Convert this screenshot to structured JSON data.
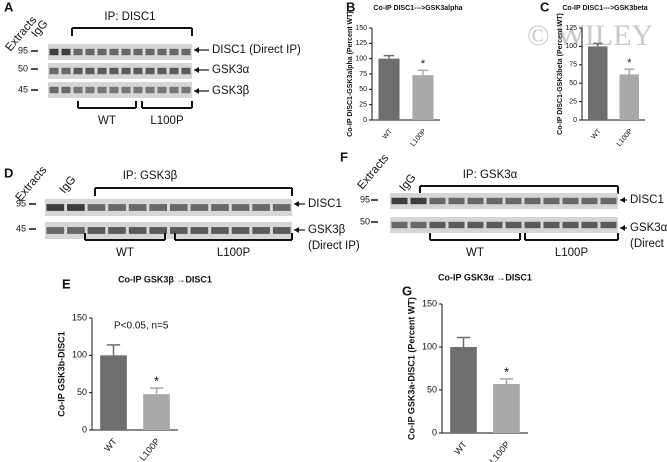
{
  "watermark": "© WILEY",
  "blots": [
    {
      "panel": "A",
      "lanes": [
        "Extracts",
        "IgG"
      ],
      "title": "IP: DISC1",
      "markers": [
        95,
        50,
        45
      ],
      "bands": [
        "DISC1 (Direct IP)",
        "GSK3α",
        "GSK3β"
      ],
      "groups": [
        "WT",
        "L100P"
      ]
    },
    {
      "panel": "D",
      "lanes": [
        "Extracts",
        "IgG"
      ],
      "title": "IP: GSK3β",
      "markers": [
        95,
        45
      ],
      "bands": [
        "DISC1",
        "GSK3β",
        "(Direct IP)"
      ],
      "groups": [
        "WT",
        "L100P"
      ]
    },
    {
      "panel": "F",
      "lanes": [
        "Extracts",
        "IgG"
      ],
      "title": "IP: GSK3α",
      "markers": [
        95,
        50
      ],
      "bands": [
        "DISC1",
        "GSK3α",
        "(Direct IP)"
      ],
      "groups": [
        "WT",
        "L100P"
      ]
    }
  ],
  "chart_data": [
    {
      "type": "bar",
      "panel": "B",
      "title": "Co-IP DISC1--->GSK3alpha",
      "y_label": "Co-IP DISC1-GSK3alpha (Percent WT)",
      "categories": [
        "WT",
        "L100P"
      ],
      "values": [
        100,
        73
      ],
      "errors": [
        5,
        8
      ],
      "colors": [
        "#6e6e6e",
        "#a9a9a9"
      ],
      "annotations": [
        "*"
      ],
      "ylim": [
        0,
        150
      ],
      "yticks": [
        0,
        25,
        50,
        75,
        100,
        125,
        150
      ]
    },
    {
      "type": "bar",
      "panel": "C",
      "title": "Co-IP DISC1--->GSK3beta",
      "y_label": "Co-IP DISC1-GSK3beta (Percent WT)",
      "categories": [
        "WT",
        "L100P"
      ],
      "values": [
        100,
        62
      ],
      "errors": [
        4,
        7
      ],
      "colors": [
        "#6e6e6e",
        "#a9a9a9"
      ],
      "annotations": [
        "*"
      ],
      "ylim": [
        0,
        125
      ],
      "yticks": [
        0,
        25,
        50,
        75,
        100,
        125
      ]
    },
    {
      "type": "bar",
      "panel": "E",
      "title": "Co-IP GSK3β →DISC1",
      "y_label": "Co-IP GSK3b-DISC1",
      "categories": [
        "WT",
        "L100P"
      ],
      "values": [
        100,
        48
      ],
      "errors": [
        14,
        8
      ],
      "colors": [
        "#6e6e6e",
        "#a9a9a9"
      ],
      "annotations": [
        "P<0.05, n=5",
        "*"
      ],
      "ylim": [
        0,
        150
      ],
      "yticks": [
        0,
        50,
        100,
        150
      ]
    },
    {
      "type": "bar",
      "panel": "G",
      "title": "Co-IP GSK3α →DISC1",
      "y_label": "Co-IP GSK3a-DISC1 (Percent WT)",
      "categories": [
        "WT",
        "L100P"
      ],
      "values": [
        100,
        57
      ],
      "errors": [
        11,
        6
      ],
      "colors": [
        "#6e6e6e",
        "#a9a9a9"
      ],
      "annotations": [
        "*"
      ],
      "ylim": [
        0,
        150
      ],
      "yticks": [
        0,
        50,
        100,
        150
      ]
    }
  ]
}
